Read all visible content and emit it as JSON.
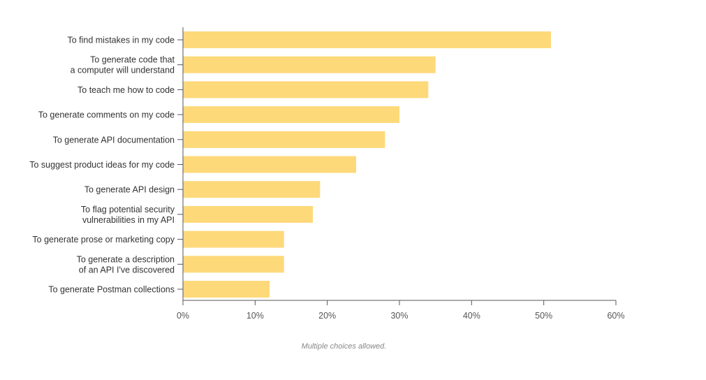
{
  "chart_data": {
    "type": "bar",
    "orientation": "horizontal",
    "categories": [
      "To find mistakes in my code",
      "To generate code that\na computer will understand",
      "To teach me how to code",
      "To generate comments on my code",
      "To generate API documentation",
      "To suggest product ideas for my code",
      "To generate API design",
      "To flag potential security\nvulnerabilities in my API",
      "To generate prose or marketing copy",
      "To generate a description\nof an API I've discovered",
      "To generate Postman collections"
    ],
    "values": [
      51,
      35,
      34,
      30,
      28,
      24,
      19,
      18,
      14,
      14,
      12
    ],
    "xlim": [
      0,
      60
    ],
    "xticks": [
      0,
      10,
      20,
      30,
      40,
      50,
      60
    ],
    "tick_suffix": "%",
    "bar_color": "#fed97a",
    "grid": false,
    "legend": "none"
  },
  "footnote": "Multiple choices allowed."
}
